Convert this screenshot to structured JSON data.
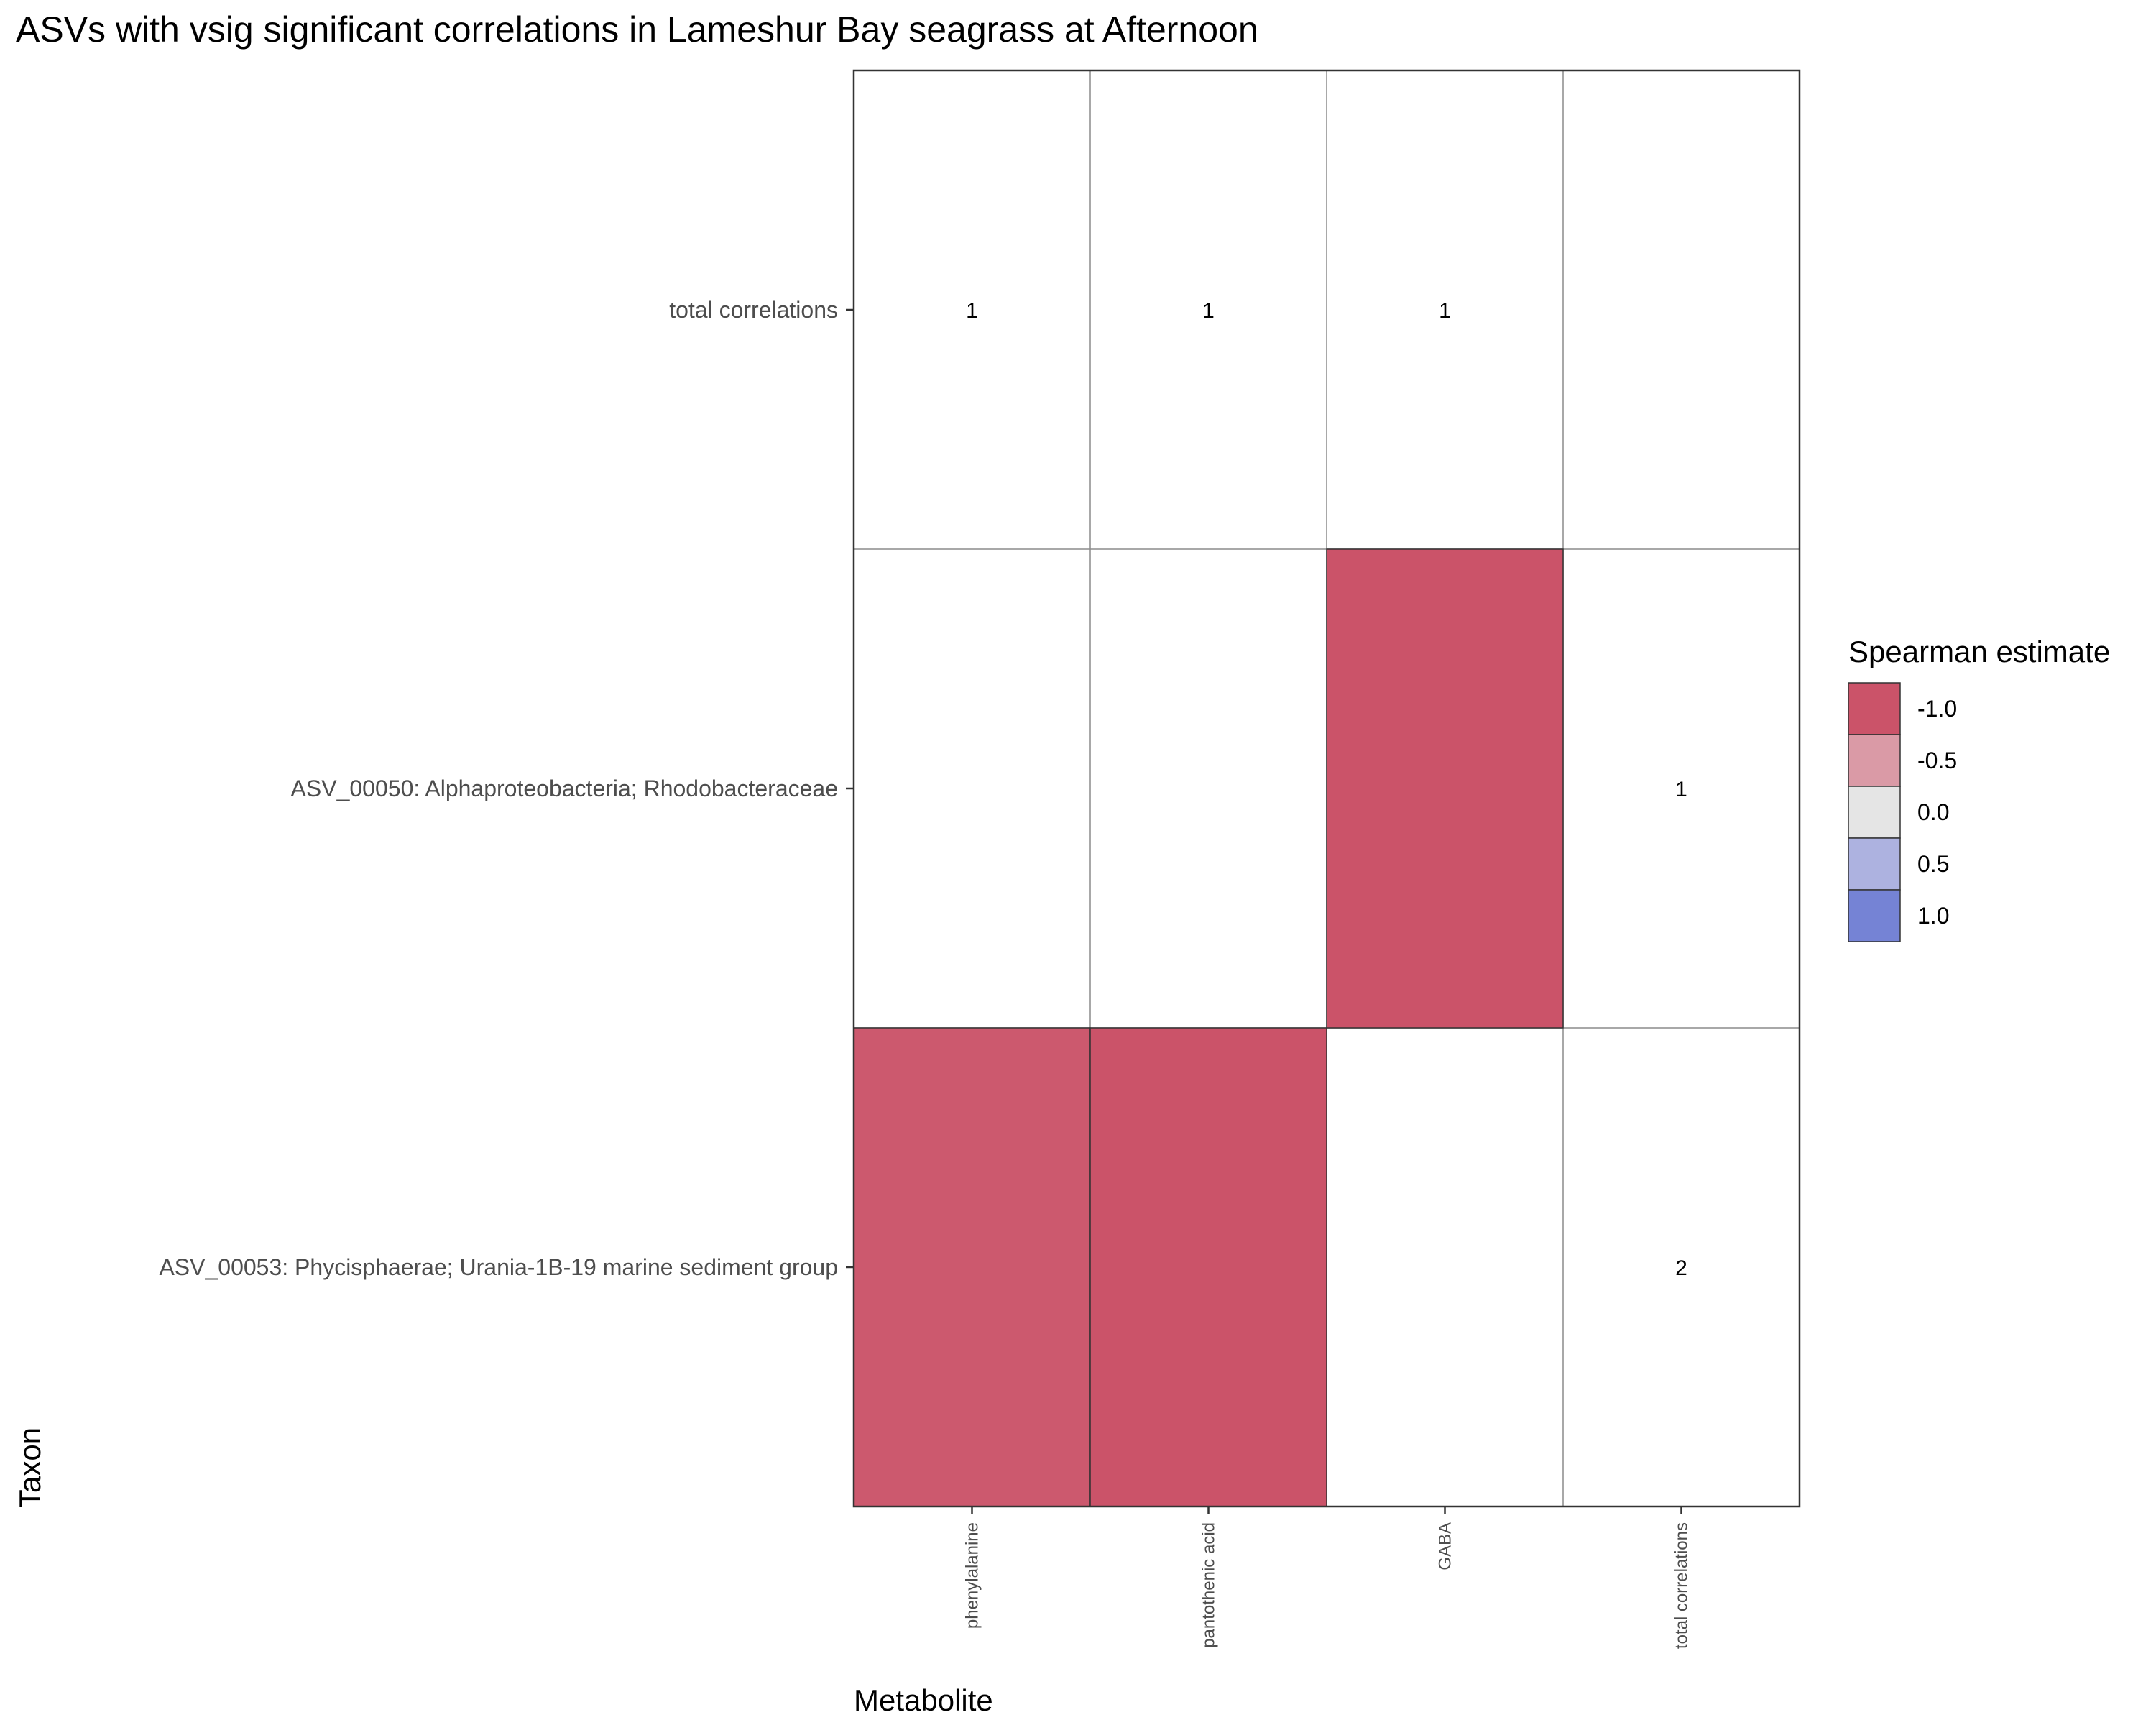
{
  "chart_data": {
    "type": "heatmap",
    "title": "ASVs with vsig significant correlations in Lameshur Bay seagrass at Afternoon",
    "xlabel": "Metabolite",
    "ylabel": "Taxon",
    "x_categories": [
      "phenylalanine",
      "pantothenic acid",
      "GABA",
      "total correlations"
    ],
    "y_categories": [
      "total correlations",
      "ASV_00050: Alphaproteobacteria; Rhodobacteraceae",
      "ASV_00053: Phycisphaerae; Urania-1B-19 marine sediment group"
    ],
    "cells": [
      {
        "x": "phenylalanine",
        "y": "ASV_00053: Phycisphaerae; Urania-1B-19 marine sediment group",
        "estimate": -0.96
      },
      {
        "x": "pantothenic acid",
        "y": "ASV_00053: Phycisphaerae; Urania-1B-19 marine sediment group",
        "estimate": -1.0
      },
      {
        "x": "GABA",
        "y": "ASV_00050: Alphaproteobacteria; Rhodobacteraceae",
        "estimate": -1.0
      }
    ],
    "count_labels": [
      {
        "x": "phenylalanine",
        "y": "total correlations",
        "label": "1"
      },
      {
        "x": "pantothenic acid",
        "y": "total correlations",
        "label": "1"
      },
      {
        "x": "GABA",
        "y": "total correlations",
        "label": "1"
      },
      {
        "x": "total correlations",
        "y": "ASV_00050: Alphaproteobacteria; Rhodobacteraceae",
        "label": "1"
      },
      {
        "x": "total correlations",
        "y": "ASV_00053: Phycisphaerae; Urania-1B-19 marine sediment group",
        "label": "2"
      }
    ],
    "legend": {
      "title": "Spearman estimate",
      "position": "right",
      "items": [
        {
          "label": "-1.0",
          "color": "#CB5369"
        },
        {
          "label": "-0.5",
          "color": "#DA9AA6"
        },
        {
          "label": "0.0",
          "color": "#E5E5E5"
        },
        {
          "label": "0.5",
          "color": "#ADB2E0"
        },
        {
          "label": "1.0",
          "color": "#7583D5"
        }
      ]
    },
    "color_scale": {
      "low": "#CB5369",
      "mid": "#E5E5E5",
      "high": "#7583D5",
      "domain": [
        -1,
        1
      ]
    }
  }
}
